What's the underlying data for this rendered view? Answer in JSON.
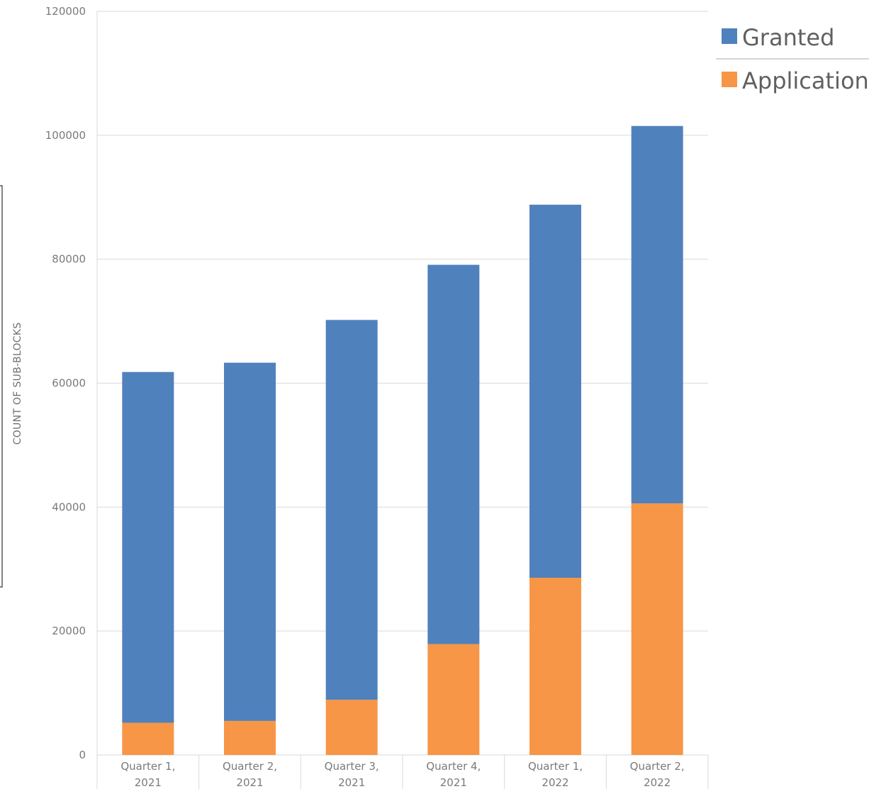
{
  "chart_data": {
    "type": "bar",
    "stacked": true,
    "categories": [
      [
        "Quarter 1,",
        "2021"
      ],
      [
        "Quarter 2,",
        "2021"
      ],
      [
        "Quarter 3,",
        "2021"
      ],
      [
        "Quarter 4,",
        "2021"
      ],
      [
        "Quarter 1,",
        "2022"
      ],
      [
        "Quarter 2,",
        "2022"
      ]
    ],
    "series": [
      {
        "name": "Application",
        "color": "#F79646",
        "values": [
          5200,
          5500,
          8900,
          17900,
          28600,
          40600
        ]
      },
      {
        "name": "Granted",
        "color": "#4F81BD",
        "values": [
          56600,
          57800,
          61300,
          61200,
          60200,
          60900
        ]
      }
    ],
    "title": "",
    "xlabel": "",
    "ylabel": "COUNT OF SUB-BLOCKS",
    "ylim": [
      0,
      120000
    ],
    "yticks": [
      "0",
      "20000",
      "40000",
      "60000",
      "80000",
      "100000",
      "120000"
    ],
    "grid": true,
    "legend": {
      "position": "top-right",
      "entries": [
        {
          "label": "Granted",
          "color": "#4F81BD"
        },
        {
          "label": "Application",
          "color": "#F79646"
        }
      ]
    }
  }
}
